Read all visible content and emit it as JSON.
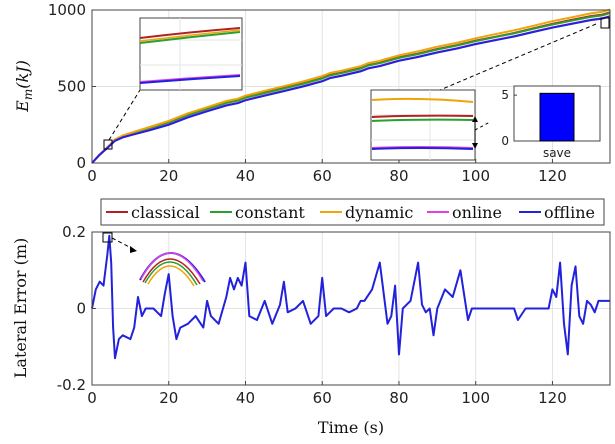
{
  "chart_data": [
    {
      "type": "line",
      "ylabel_base": "E",
      "ylabel_sub": "m",
      "ylabel_unit": "(kJ)",
      "xlim": [
        0,
        135
      ],
      "ylim": [
        0,
        1000
      ],
      "xticks": [
        "0",
        "20",
        "40",
        "60",
        "80",
        "100",
        "120"
      ],
      "yticks": [
        "0",
        "500",
        "1000"
      ],
      "grid": true,
      "x": [
        0,
        2,
        4,
        6,
        8,
        10,
        12,
        15,
        20,
        25,
        30,
        35,
        38,
        40,
        45,
        50,
        55,
        60,
        62,
        65,
        70,
        72,
        75,
        80,
        85,
        90,
        95,
        100,
        105,
        110,
        115,
        120,
        125,
        130,
        133,
        135
      ],
      "series": [
        {
          "name": "classical",
          "color": "#b22222",
          "values": [
            0,
            55,
            100,
            150,
            175,
            190,
            205,
            225,
            265,
            315,
            355,
            395,
            410,
            430,
            460,
            490,
            520,
            555,
            575,
            590,
            620,
            640,
            655,
            690,
            715,
            745,
            770,
            800,
            825,
            850,
            880,
            910,
            935,
            960,
            970,
            985
          ]
        },
        {
          "name": "constant",
          "color": "#2ca02c",
          "values": [
            0,
            55,
            100,
            148,
            172,
            188,
            202,
            222,
            262,
            312,
            352,
            392,
            407,
            427,
            457,
            487,
            517,
            552,
            572,
            587,
            617,
            637,
            652,
            687,
            712,
            742,
            767,
            797,
            822,
            847,
            877,
            905,
            930,
            955,
            965,
            980
          ]
        },
        {
          "name": "dynamic",
          "color": "#f0a30a",
          "values": [
            0,
            57,
            103,
            155,
            180,
            197,
            212,
            235,
            275,
            325,
            365,
            405,
            420,
            440,
            472,
            502,
            533,
            568,
            588,
            603,
            633,
            653,
            668,
            703,
            730,
            760,
            785,
            815,
            842,
            867,
            897,
            927,
            952,
            978,
            988,
            1003
          ]
        },
        {
          "name": "online",
          "color": "#e040e0",
          "values": [
            0,
            54,
            98,
            146,
            168,
            182,
            195,
            215,
            252,
            300,
            340,
            378,
            393,
            412,
            442,
            472,
            502,
            536,
            556,
            571,
            601,
            620,
            635,
            670,
            695,
            724,
            749,
            779,
            804,
            829,
            858,
            886,
            911,
            936,
            946,
            960
          ]
        },
        {
          "name": "offline",
          "color": "#2222dd",
          "values": [
            0,
            54,
            98,
            145,
            167,
            181,
            194,
            214,
            250,
            298,
            338,
            376,
            391,
            410,
            440,
            470,
            500,
            534,
            554,
            569,
            599,
            618,
            633,
            668,
            693,
            722,
            747,
            777,
            802,
            827,
            856,
            884,
            909,
            934,
            944,
            958
          ]
        }
      ],
      "inset_bar": {
        "categories": [
          "save"
        ],
        "values": [
          5.2
        ],
        "yticks": [
          "0",
          "5"
        ],
        "ylim": [
          0,
          6
        ],
        "color": "#0000ff"
      }
    },
    {
      "type": "line",
      "xlabel": "Time (s)",
      "ylabel": "Lateral Error (m)",
      "xlim": [
        0,
        135
      ],
      "ylim": [
        -0.2,
        0.2
      ],
      "xticks": [
        "0",
        "20",
        "40",
        "60",
        "80",
        "100",
        "120"
      ],
      "yticks": [
        "-0.2",
        "0",
        "0.2"
      ],
      "grid": true,
      "x": [
        0,
        1,
        2,
        3,
        4,
        4.5,
        5,
        5.5,
        6,
        7,
        8,
        10,
        11,
        12,
        13,
        14,
        16,
        18,
        19,
        20,
        21,
        22,
        23,
        25,
        27,
        29,
        30,
        31,
        33,
        35,
        36,
        37,
        38,
        39,
        40,
        41,
        43,
        45,
        47,
        49,
        50,
        51,
        53,
        55,
        57,
        59,
        60,
        61,
        63,
        65,
        67,
        69,
        70,
        71,
        73,
        75,
        77,
        78,
        79,
        80,
        81,
        82,
        83,
        85,
        86,
        87,
        88,
        89,
        90,
        92,
        94,
        96,
        98,
        99,
        100,
        101,
        103,
        105,
        107,
        109,
        110,
        111,
        113,
        115,
        117,
        118,
        119,
        120,
        121,
        122,
        123,
        124,
        125,
        126,
        127,
        128,
        129,
        130,
        131,
        132,
        133,
        135
      ],
      "series": [
        {
          "name": "offline",
          "color": "#2222dd",
          "values": [
            0,
            0.05,
            0.07,
            0.06,
            0.14,
            0.19,
            0.12,
            -0.05,
            -0.13,
            -0.08,
            -0.07,
            -0.08,
            -0.05,
            0.03,
            -0.02,
            0.0,
            0.0,
            -0.02,
            0.04,
            0.09,
            -0.02,
            -0.08,
            -0.05,
            -0.04,
            -0.02,
            -0.05,
            0.02,
            -0.02,
            -0.04,
            0.03,
            0.08,
            0.05,
            0.08,
            0.06,
            0.12,
            -0.02,
            -0.03,
            0.02,
            -0.04,
            0.01,
            0.07,
            -0.01,
            0.0,
            0.02,
            -0.04,
            -0.02,
            0.08,
            -0.02,
            0.0,
            0.0,
            -0.01,
            0.0,
            0.02,
            0.02,
            0.05,
            0.12,
            -0.04,
            -0.02,
            0.06,
            -0.12,
            0.0,
            0.01,
            0.02,
            0.12,
            0.01,
            -0.01,
            0.0,
            -0.07,
            0.0,
            0.05,
            0.03,
            0.1,
            -0.03,
            0.0,
            0.0,
            0.0,
            0.0,
            0.0,
            0.0,
            0.0,
            0.0,
            -0.03,
            0.0,
            0.0,
            0.0,
            0.0,
            0.0,
            0.05,
            0.03,
            0.12,
            -0.04,
            -0.12,
            0.06,
            0.11,
            -0.02,
            -0.04,
            0.02,
            0.01,
            -0.01,
            0.02,
            0.02,
            0.02
          ]
        }
      ]
    }
  ],
  "legend": {
    "items": [
      {
        "label": "classical",
        "color": "#b22222"
      },
      {
        "label": "constant",
        "color": "#2ca02c"
      },
      {
        "label": "dynamic",
        "color": "#f0a30a"
      },
      {
        "label": "online",
        "color": "#e040e0"
      },
      {
        "label": "offline",
        "color": "#2222dd"
      }
    ]
  }
}
